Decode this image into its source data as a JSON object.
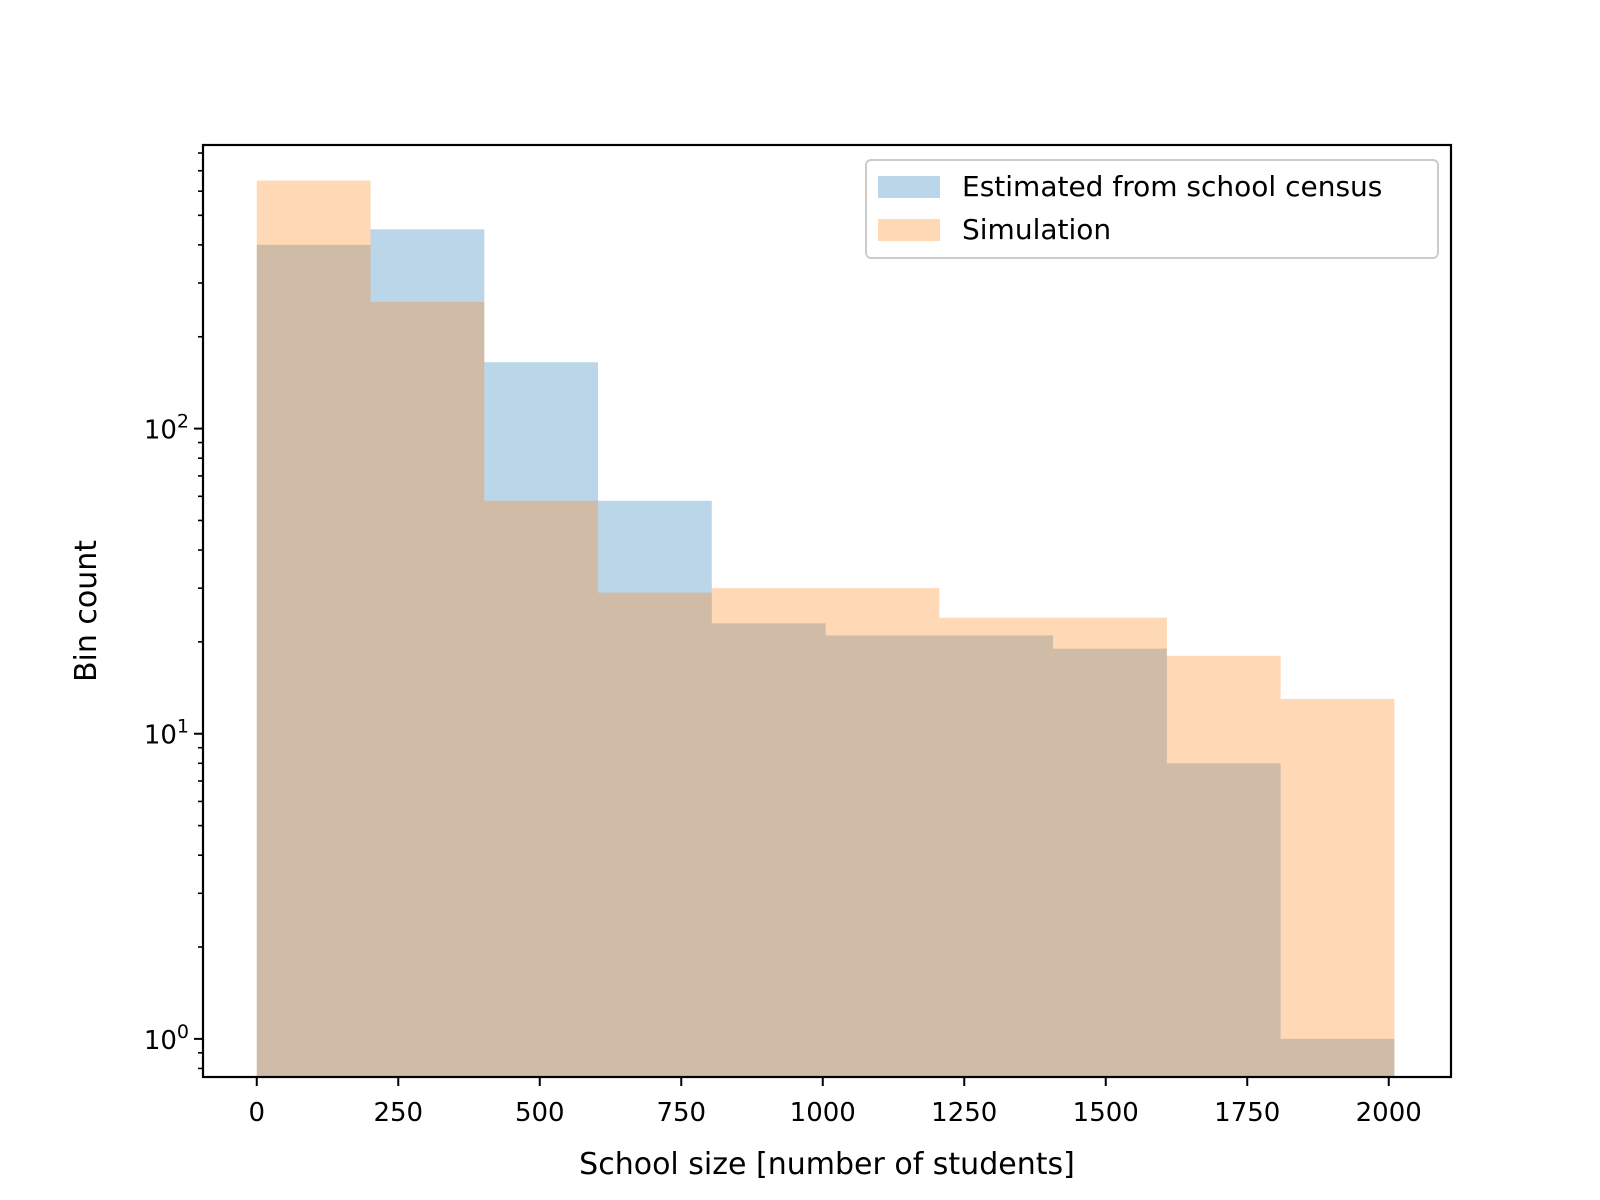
{
  "chart_data": {
    "type": "bar",
    "subtype": "histogram",
    "xlabel": "School size [number of students]",
    "ylabel": "Bin count",
    "xlim": [
      -95,
      2110
    ],
    "ylim": [
      0.75,
      850
    ],
    "yscale": "log",
    "grid": false,
    "legend_position": "top-right",
    "bin_edges": [
      0,
      201,
      402,
      603,
      804,
      1005,
      1206,
      1407,
      1608,
      1809,
      2010
    ],
    "x_ticks": [
      0,
      250,
      500,
      750,
      1000,
      1250,
      1500,
      1750,
      2000
    ],
    "y_ticks": [
      {
        "value": 1,
        "base": "10",
        "exp": "0"
      },
      {
        "value": 10,
        "base": "10",
        "exp": "1"
      },
      {
        "value": 100,
        "base": "10",
        "exp": "2"
      }
    ],
    "series": [
      {
        "name": "Estimated from school census",
        "color": "#1f77b4",
        "opacity": 0.3,
        "values": [
          400,
          450,
          165,
          58,
          23,
          21,
          21,
          19,
          8,
          1
        ]
      },
      {
        "name": "Simulation",
        "color": "#ff7f0e",
        "opacity": 0.3,
        "values": [
          650,
          260,
          58,
          29,
          30,
          30,
          24,
          24,
          18,
          13
        ]
      }
    ]
  }
}
